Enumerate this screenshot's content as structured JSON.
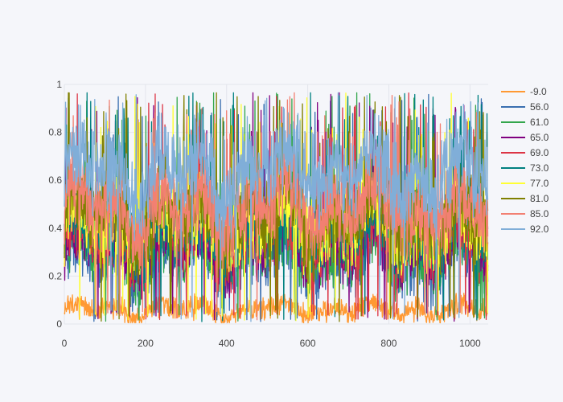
{
  "chart_data": {
    "type": "line",
    "title": "",
    "xlabel": "",
    "ylabel": "",
    "xlim": [
      0,
      1045
    ],
    "ylim": [
      0,
      1
    ],
    "x_ticks": [
      0,
      200,
      400,
      600,
      800,
      1000
    ],
    "x_tick_labels": [
      "0",
      "200",
      "400",
      "600",
      "800",
      "1000"
    ],
    "y_ticks": [
      0,
      0.2,
      0.4,
      0.6,
      0.8,
      1
    ],
    "y_tick_labels": [
      "0",
      "0.2",
      "0.4",
      "0.6",
      "0.8",
      "1"
    ],
    "grid": true,
    "legend_position": "right",
    "n_points": 1045,
    "series": [
      {
        "name": "-9.0",
        "color": "#ff9933",
        "level": 0.06,
        "spread": 0.05
      },
      {
        "name": "56.0",
        "color": "#3a6fb0",
        "level": 0.27,
        "spread": 0.14
      },
      {
        "name": "61.0",
        "color": "#33a64c",
        "level": 0.3,
        "spread": 0.14
      },
      {
        "name": "65.0",
        "color": "#800080",
        "level": 0.33,
        "spread": 0.15
      },
      {
        "name": "69.0",
        "color": "#dc3545",
        "level": 0.36,
        "spread": 0.15
      },
      {
        "name": "73.0",
        "color": "#008080",
        "level": 0.38,
        "spread": 0.16
      },
      {
        "name": "77.0",
        "color": "#ffff33",
        "level": 0.41,
        "spread": 0.16
      },
      {
        "name": "81.0",
        "color": "#808000",
        "level": 0.44,
        "spread": 0.17
      },
      {
        "name": "85.0",
        "color": "#f28072",
        "level": 0.48,
        "spread": 0.17
      },
      {
        "name": "92.0",
        "color": "#80aed8",
        "level": 0.63,
        "spread": 0.18
      }
    ]
  }
}
